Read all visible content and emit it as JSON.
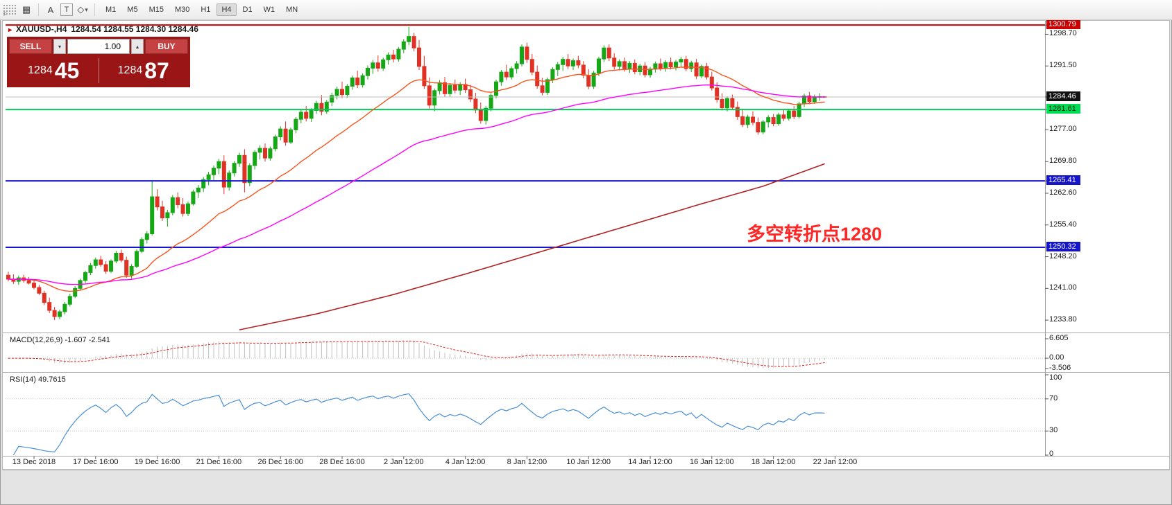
{
  "window": {
    "bg": "#e4e4e4",
    "surface": "#ffffff"
  },
  "toolbar": {
    "handle_label": "F",
    "icons": {
      "grid": "▦",
      "text_a": "A",
      "text_t": "T",
      "shapes": "◇",
      "caret": "▾",
      "caret_up": "▴"
    },
    "timeframes": [
      "M1",
      "M5",
      "M15",
      "M30",
      "H1",
      "H4",
      "D1",
      "W1",
      "MN"
    ],
    "active_timeframe": "H4"
  },
  "chart": {
    "title": {
      "marker": "▸",
      "symbol": "XAUUSD-,H4",
      "ohlc": "1284.54 1284.55 1284.30 1284.46"
    },
    "trade_panel": {
      "sell_label": "SELL",
      "buy_label": "BUY",
      "volume": "1.00",
      "sell_big": "1284",
      "sell_pips": "45",
      "buy_big": "1284",
      "buy_pips": "87",
      "panel_color": "#9a1616",
      "button_color": "#c64242"
    },
    "annotation": {
      "text": "多空转折点1280",
      "color": "#ff2626"
    }
  },
  "macd_panel": {
    "label": "MACD(12,26,9) -1.607 -2.541",
    "axis": [
      {
        "v": 6.605,
        "t": "6.605"
      },
      {
        "v": 0,
        "t": "0.00"
      },
      {
        "v": -3.506,
        "t": "-3.506"
      }
    ]
  },
  "rsi_panel": {
    "label": "RSI(14) 49.7615",
    "axis": [
      {
        "v": 100,
        "t": "100"
      },
      {
        "v": 70,
        "t": "70"
      },
      {
        "v": 30,
        "t": "30"
      },
      {
        "v": 0,
        "t": "0"
      }
    ]
  },
  "chart_data": {
    "type": "candlestick",
    "symbol": "XAUUSD-",
    "timeframe": "H4",
    "current": {
      "open": 1284.54,
      "high": 1284.55,
      "low": 1284.3,
      "close": 1284.46,
      "bid": 1284.45,
      "ask": 1284.87
    },
    "price_axis": {
      "min": 1231.3,
      "max": 1301.6,
      "plain_labels": [
        1298.7,
        1291.5,
        1277.0,
        1269.8,
        1262.6,
        1255.4,
        1248.2,
        1241.0,
        1233.8
      ],
      "boxes": [
        {
          "v": 1300.79,
          "bg": "#cc0000",
          "fg": "#ffffff"
        },
        {
          "v": 1284.46,
          "bg": "#101010",
          "fg": "#ffffff"
        },
        {
          "v": 1281.61,
          "bg": "#00dd55",
          "fg": "#00220a"
        },
        {
          "v": 1265.41,
          "bg": "#1515cc",
          "fg": "#ffffff"
        },
        {
          "v": 1250.32,
          "bg": "#1515cc",
          "fg": "#ffffff"
        }
      ]
    },
    "h_lines": [
      {
        "p": 1300.79,
        "color": "#cc0000",
        "w": 2
      },
      {
        "p": 1284.46,
        "color": "#bbbbbb",
        "w": 1
      },
      {
        "p": 1281.61,
        "color": "#00cc55",
        "w": 2
      },
      {
        "p": 1265.41,
        "color": "#1717d0",
        "w": 2
      },
      {
        "p": 1250.32,
        "color": "#1717d0",
        "w": 2
      }
    ],
    "colors": {
      "bull": "#16a716",
      "bear": "#e03224",
      "ma_fast": "#f4551e",
      "ma_mid": "#ff00ff",
      "ma_slow": "#b22222",
      "macd_signal": "#e02020",
      "macd_hist": "#c0c0c0",
      "rsi": "#4a8fd4",
      "grid": "#c4c4c4"
    },
    "overlays": {
      "ma_fast_period": 24,
      "ma_mid_period": 68,
      "ma_slow_waypoints": [
        [
          45,
          1231.6
        ],
        [
          60,
          1235.2
        ],
        [
          75,
          1239.6
        ],
        [
          90,
          1244.6
        ],
        [
          105,
          1249.8
        ],
        [
          120,
          1255.0
        ],
        [
          135,
          1260.2
        ],
        [
          147,
          1264.2
        ],
        [
          159,
          1269.3
        ]
      ]
    },
    "macd": {
      "fast": 12,
      "slow": 26,
      "signal": 9,
      "current_macd": -1.607,
      "current_signal": -2.541,
      "range": [
        -3.506,
        6.605
      ]
    },
    "rsi": {
      "period": 14,
      "current": 49.7615,
      "range": [
        0,
        100
      ],
      "levels": [
        70,
        30
      ]
    },
    "x_labels": [
      {
        "i": 5,
        "t": "13 Dec 2018"
      },
      {
        "i": 17,
        "t": "17 Dec 16:00"
      },
      {
        "i": 29,
        "t": "19 Dec 16:00"
      },
      {
        "i": 41,
        "t": "21 Dec 16:00"
      },
      {
        "i": 53,
        "t": "26 Dec 16:00"
      },
      {
        "i": 65,
        "t": "28 Dec 16:00"
      },
      {
        "i": 77,
        "t": "2 Jan 12:00"
      },
      {
        "i": 89,
        "t": "4 Jan 12:00"
      },
      {
        "i": 101,
        "t": "8 Jan 12:00"
      },
      {
        "i": 113,
        "t": "10 Jan 12:00"
      },
      {
        "i": 125,
        "t": "14 Jan 12:00"
      },
      {
        "i": 137,
        "t": "16 Jan 12:00"
      },
      {
        "i": 149,
        "t": "18 Jan 12:00"
      },
      {
        "i": 161,
        "t": "22 Jan 12:00"
      }
    ],
    "candles": [
      [
        1244.0,
        1244.8,
        1242.6,
        1243.1
      ],
      [
        1243.1,
        1244.2,
        1242.0,
        1242.6
      ],
      [
        1242.6,
        1243.9,
        1241.8,
        1243.4
      ],
      [
        1243.4,
        1244.1,
        1242.3,
        1242.8
      ],
      [
        1242.8,
        1243.6,
        1241.9,
        1242.2
      ],
      [
        1242.2,
        1242.9,
        1240.8,
        1241.2
      ],
      [
        1241.2,
        1241.8,
        1239.5,
        1239.9
      ],
      [
        1239.9,
        1240.5,
        1237.2,
        1237.8
      ],
      [
        1237.8,
        1238.9,
        1235.4,
        1236.0
      ],
      [
        1236.0,
        1236.8,
        1233.8,
        1234.6
      ],
      [
        1234.6,
        1236.2,
        1234.0,
        1235.7
      ],
      [
        1235.7,
        1237.9,
        1235.1,
        1237.4
      ],
      [
        1237.4,
        1239.8,
        1236.9,
        1239.2
      ],
      [
        1239.2,
        1241.5,
        1238.8,
        1241.0
      ],
      [
        1241.0,
        1243.2,
        1240.6,
        1242.8
      ],
      [
        1242.8,
        1245.0,
        1242.2,
        1244.6
      ],
      [
        1244.6,
        1246.8,
        1244.0,
        1246.2
      ],
      [
        1246.2,
        1248.0,
        1245.5,
        1247.5
      ],
      [
        1247.5,
        1248.4,
        1245.9,
        1246.4
      ],
      [
        1246.4,
        1247.2,
        1244.3,
        1244.9
      ],
      [
        1244.9,
        1247.6,
        1244.5,
        1247.2
      ],
      [
        1247.2,
        1249.5,
        1246.7,
        1249.0
      ],
      [
        1249.0,
        1249.8,
        1246.9,
        1247.4
      ],
      [
        1247.4,
        1248.2,
        1243.4,
        1244.0
      ],
      [
        1244.0,
        1246.5,
        1243.2,
        1246.0
      ],
      [
        1246.0,
        1249.9,
        1245.6,
        1249.4
      ],
      [
        1249.4,
        1252.6,
        1249.0,
        1252.1
      ],
      [
        1252.1,
        1254.0,
        1251.2,
        1253.4
      ],
      [
        1253.4,
        1265.3,
        1253.0,
        1261.8
      ],
      [
        1261.8,
        1263.5,
        1258.7,
        1259.5
      ],
      [
        1259.5,
        1260.9,
        1256.3,
        1257.0
      ],
      [
        1257.0,
        1258.8,
        1255.0,
        1258.2
      ],
      [
        1258.2,
        1262.2,
        1257.6,
        1261.6
      ],
      [
        1261.6,
        1262.8,
        1259.2,
        1260.0
      ],
      [
        1260.0,
        1261.5,
        1257.3,
        1258.0
      ],
      [
        1258.0,
        1260.7,
        1257.4,
        1260.2
      ],
      [
        1260.2,
        1263.4,
        1259.8,
        1262.9
      ],
      [
        1262.9,
        1264.5,
        1261.5,
        1263.8
      ],
      [
        1263.8,
        1266.3,
        1262.9,
        1265.7
      ],
      [
        1265.7,
        1267.5,
        1264.4,
        1266.8
      ],
      [
        1266.8,
        1268.9,
        1265.6,
        1268.3
      ],
      [
        1268.3,
        1270.4,
        1266.9,
        1269.8
      ],
      [
        1269.8,
        1271.2,
        1262.4,
        1264.0
      ],
      [
        1264.0,
        1267.8,
        1263.2,
        1267.2
      ],
      [
        1267.2,
        1269.9,
        1266.4,
        1269.4
      ],
      [
        1269.4,
        1271.8,
        1268.6,
        1271.2
      ],
      [
        1271.2,
        1272.6,
        1262.8,
        1265.0
      ],
      [
        1265.0,
        1269.4,
        1264.2,
        1268.9
      ],
      [
        1268.9,
        1272.4,
        1268.0,
        1271.9
      ],
      [
        1271.9,
        1273.5,
        1270.3,
        1272.8
      ],
      [
        1272.8,
        1273.9,
        1269.8,
        1270.6
      ],
      [
        1270.6,
        1273.2,
        1270.0,
        1272.7
      ],
      [
        1272.7,
        1275.9,
        1272.1,
        1275.4
      ],
      [
        1275.4,
        1277.8,
        1274.6,
        1277.2
      ],
      [
        1277.2,
        1278.9,
        1273.4,
        1274.2
      ],
      [
        1274.2,
        1277.5,
        1273.8,
        1277.0
      ],
      [
        1277.0,
        1279.9,
        1276.2,
        1279.4
      ],
      [
        1279.4,
        1281.6,
        1278.5,
        1281.0
      ],
      [
        1281.0,
        1282.4,
        1278.9,
        1279.6
      ],
      [
        1279.6,
        1281.9,
        1278.8,
        1281.4
      ],
      [
        1281.4,
        1283.6,
        1280.6,
        1283.0
      ],
      [
        1283.0,
        1284.9,
        1280.3,
        1281.2
      ],
      [
        1281.2,
        1283.8,
        1280.6,
        1283.3
      ],
      [
        1283.3,
        1285.4,
        1282.4,
        1284.8
      ],
      [
        1284.8,
        1286.8,
        1283.9,
        1286.2
      ],
      [
        1286.2,
        1287.9,
        1284.2,
        1285.0
      ],
      [
        1285.0,
        1287.4,
        1284.3,
        1286.9
      ],
      [
        1286.9,
        1289.3,
        1286.1,
        1288.8
      ],
      [
        1288.8,
        1290.4,
        1286.5,
        1287.2
      ],
      [
        1287.2,
        1289.8,
        1286.6,
        1289.3
      ],
      [
        1289.3,
        1291.6,
        1288.4,
        1291.0
      ],
      [
        1291.0,
        1292.8,
        1289.7,
        1292.2
      ],
      [
        1292.2,
        1293.9,
        1290.2,
        1291.0
      ],
      [
        1291.0,
        1293.4,
        1290.4,
        1292.9
      ],
      [
        1292.9,
        1294.6,
        1291.8,
        1294.0
      ],
      [
        1294.0,
        1295.2,
        1292.3,
        1293.1
      ],
      [
        1293.1,
        1295.8,
        1292.5,
        1295.3
      ],
      [
        1295.3,
        1297.6,
        1294.4,
        1297.0
      ],
      [
        1297.0,
        1300.4,
        1296.2,
        1298.2
      ],
      [
        1298.2,
        1299.0,
        1294.8,
        1295.6
      ],
      [
        1295.6,
        1297.4,
        1290.6,
        1291.4
      ],
      [
        1291.4,
        1293.8,
        1286.3,
        1287.0
      ],
      [
        1287.0,
        1288.9,
        1281.8,
        1282.6
      ],
      [
        1282.6,
        1286.4,
        1281.2,
        1285.9
      ],
      [
        1285.9,
        1288.3,
        1285.0,
        1287.7
      ],
      [
        1287.7,
        1289.0,
        1284.4,
        1285.2
      ],
      [
        1285.2,
        1287.6,
        1284.5,
        1287.1
      ],
      [
        1287.1,
        1288.4,
        1285.3,
        1286.0
      ],
      [
        1286.0,
        1287.8,
        1284.9,
        1287.3
      ],
      [
        1287.3,
        1288.6,
        1285.4,
        1286.1
      ],
      [
        1286.1,
        1287.2,
        1283.3,
        1284.0
      ],
      [
        1284.0,
        1285.4,
        1280.8,
        1281.5
      ],
      [
        1281.5,
        1283.2,
        1278.4,
        1279.1
      ],
      [
        1279.1,
        1282.4,
        1278.2,
        1281.9
      ],
      [
        1281.9,
        1285.3,
        1281.2,
        1284.8
      ],
      [
        1284.8,
        1288.4,
        1284.1,
        1287.9
      ],
      [
        1287.9,
        1290.6,
        1287.0,
        1290.1
      ],
      [
        1290.1,
        1291.8,
        1288.3,
        1289.0
      ],
      [
        1289.0,
        1291.4,
        1288.4,
        1290.9
      ],
      [
        1290.9,
        1292.6,
        1289.8,
        1292.0
      ],
      [
        1292.0,
        1296.4,
        1291.4,
        1295.8
      ],
      [
        1295.8,
        1296.8,
        1292.2,
        1293.0
      ],
      [
        1293.0,
        1294.2,
        1289.4,
        1290.1
      ],
      [
        1290.1,
        1291.6,
        1286.3,
        1287.0
      ],
      [
        1287.0,
        1288.8,
        1284.8,
        1285.5
      ],
      [
        1285.5,
        1288.9,
        1284.9,
        1288.4
      ],
      [
        1288.4,
        1291.2,
        1287.6,
        1290.7
      ],
      [
        1290.7,
        1292.4,
        1289.2,
        1291.8
      ],
      [
        1291.8,
        1293.6,
        1290.4,
        1293.0
      ],
      [
        1293.0,
        1294.2,
        1290.8,
        1291.5
      ],
      [
        1291.5,
        1293.2,
        1290.6,
        1292.7
      ],
      [
        1292.7,
        1293.8,
        1291.0,
        1291.7
      ],
      [
        1291.7,
        1292.6,
        1288.7,
        1289.4
      ],
      [
        1289.4,
        1290.8,
        1286.2,
        1286.9
      ],
      [
        1286.9,
        1290.4,
        1286.3,
        1289.9
      ],
      [
        1289.9,
        1293.6,
        1289.2,
        1293.1
      ],
      [
        1293.1,
        1296.2,
        1292.4,
        1295.6
      ],
      [
        1295.6,
        1296.4,
        1292.6,
        1293.3
      ],
      [
        1293.3,
        1294.4,
        1290.7,
        1291.4
      ],
      [
        1291.4,
        1293.0,
        1290.5,
        1292.5
      ],
      [
        1292.5,
        1293.4,
        1290.2,
        1290.9
      ],
      [
        1290.9,
        1292.6,
        1289.9,
        1292.1
      ],
      [
        1292.1,
        1293.0,
        1289.6,
        1290.2
      ],
      [
        1290.2,
        1292.0,
        1289.4,
        1291.5
      ],
      [
        1291.5,
        1292.4,
        1288.9,
        1289.5
      ],
      [
        1289.5,
        1291.3,
        1288.8,
        1290.8
      ],
      [
        1290.8,
        1292.5,
        1290.0,
        1292.0
      ],
      [
        1292.0,
        1293.2,
        1290.4,
        1291.0
      ],
      [
        1291.0,
        1292.8,
        1290.2,
        1292.3
      ],
      [
        1292.3,
        1293.4,
        1290.7,
        1291.3
      ],
      [
        1291.3,
        1292.9,
        1290.5,
        1292.4
      ],
      [
        1292.4,
        1293.6,
        1291.2,
        1293.0
      ],
      [
        1293.0,
        1293.8,
        1290.3,
        1290.9
      ],
      [
        1290.9,
        1292.7,
        1290.1,
        1292.2
      ],
      [
        1292.2,
        1293.1,
        1288.5,
        1289.2
      ],
      [
        1289.2,
        1291.8,
        1288.7,
        1291.4
      ],
      [
        1291.4,
        1292.2,
        1288.4,
        1289.0
      ],
      [
        1289.0,
        1290.2,
        1285.9,
        1286.5
      ],
      [
        1286.5,
        1287.8,
        1283.2,
        1283.9
      ],
      [
        1283.9,
        1285.3,
        1281.4,
        1282.0
      ],
      [
        1282.0,
        1284.6,
        1281.2,
        1284.1
      ],
      [
        1284.1,
        1285.0,
        1281.5,
        1282.1
      ],
      [
        1282.1,
        1283.4,
        1279.3,
        1280.0
      ],
      [
        1280.0,
        1281.8,
        1277.6,
        1278.2
      ],
      [
        1278.2,
        1280.4,
        1277.4,
        1279.9
      ],
      [
        1279.9,
        1281.2,
        1278.0,
        1278.7
      ],
      [
        1278.7,
        1279.8,
        1275.9,
        1276.5
      ],
      [
        1276.5,
        1279.2,
        1276.0,
        1278.8
      ],
      [
        1278.8,
        1280.3,
        1277.5,
        1279.8
      ],
      [
        1279.8,
        1280.6,
        1277.8,
        1278.4
      ],
      [
        1278.4,
        1280.9,
        1277.9,
        1280.4
      ],
      [
        1280.4,
        1281.5,
        1279.0,
        1279.6
      ],
      [
        1279.6,
        1281.8,
        1279.1,
        1281.3
      ],
      [
        1281.3,
        1282.4,
        1279.4,
        1280.0
      ],
      [
        1280.0,
        1283.4,
        1279.6,
        1282.9
      ],
      [
        1282.9,
        1285.2,
        1282.2,
        1284.7
      ],
      [
        1284.7,
        1285.6,
        1282.8,
        1283.4
      ],
      [
        1283.4,
        1285.0,
        1282.9,
        1284.5
      ],
      [
        1284.5,
        1285.3,
        1283.6,
        1284.54
      ],
      [
        1284.54,
        1284.55,
        1284.3,
        1284.46
      ]
    ]
  }
}
